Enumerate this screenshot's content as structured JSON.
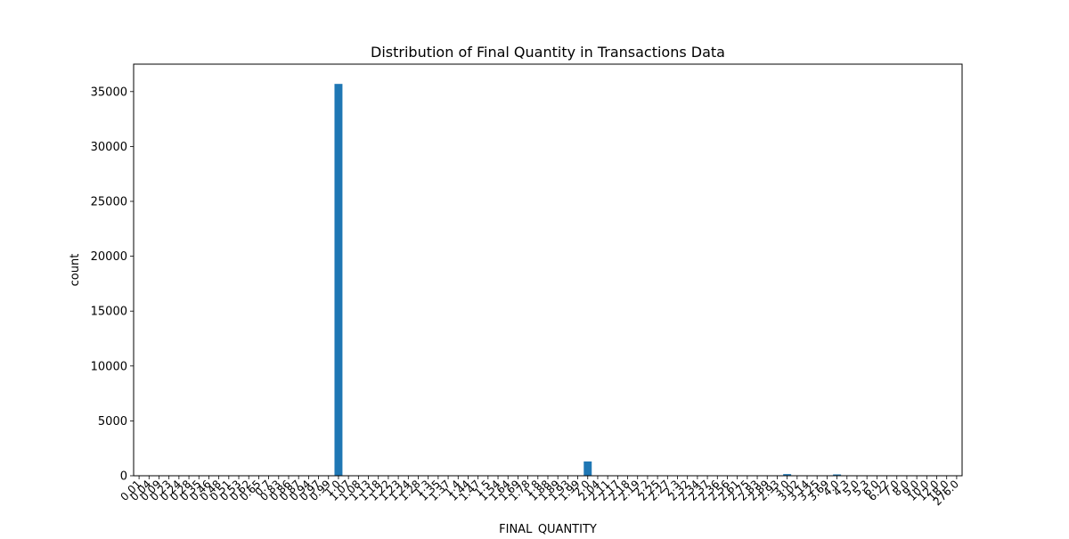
{
  "chart_data": {
    "type": "bar",
    "title": "Distribution of Final Quantity in Transactions Data",
    "xlabel": "FINAL_QUANTITY",
    "ylabel": "count",
    "ylim": [
      0,
      37500
    ],
    "yticks": [
      0,
      5000,
      10000,
      15000,
      20000,
      25000,
      30000,
      35000
    ],
    "categories": [
      "0.01",
      "0.04",
      "0.09",
      "0.23",
      "0.24",
      "0.28",
      "0.35",
      "0.46",
      "0.48",
      "0.51",
      "0.53",
      "0.62",
      "0.65",
      "0.7",
      "0.83",
      "0.86",
      "0.87",
      "0.94",
      "0.97",
      "0.99",
      "1.0",
      "1.07",
      "1.08",
      "1.13",
      "1.18",
      "1.22",
      "1.23",
      "1.24",
      "1.28",
      "1.3",
      "1.35",
      "1.37",
      "1.4",
      "1.44",
      "1.47",
      "1.5",
      "1.54",
      "1.64",
      "1.69",
      "1.78",
      "1.8",
      "1.88",
      "1.89",
      "1.93",
      "1.99",
      "2.0",
      "2.04",
      "2.11",
      "2.17",
      "2.18",
      "2.19",
      "2.2",
      "2.25",
      "2.27",
      "2.3",
      "2.32",
      "2.34",
      "2.37",
      "2.36",
      "2.56",
      "2.61",
      "2.75",
      "2.83",
      "2.89",
      "2.93",
      "3.0",
      "3.02",
      "3.14",
      "3.25",
      "3.69",
      "4.0",
      "4.3",
      "5.0",
      "5.3",
      "6.0",
      "6.22",
      "7.0",
      "8.0",
      "9.0",
      "10.0",
      "12.0",
      "18.0",
      "276.0"
    ],
    "values": [
      5,
      5,
      5,
      5,
      5,
      5,
      5,
      5,
      5,
      5,
      5,
      5,
      5,
      5,
      5,
      5,
      5,
      5,
      5,
      5,
      35700,
      5,
      5,
      5,
      5,
      5,
      5,
      5,
      5,
      5,
      5,
      5,
      5,
      5,
      5,
      5,
      5,
      5,
      5,
      5,
      5,
      5,
      5,
      5,
      5,
      1300,
      5,
      5,
      5,
      5,
      5,
      5,
      5,
      5,
      5,
      5,
      5,
      5,
      5,
      5,
      5,
      5,
      5,
      5,
      5,
      150,
      5,
      5,
      5,
      5,
      120,
      5,
      5,
      5,
      5,
      5,
      5,
      5,
      5,
      5,
      5,
      5,
      5
    ],
    "bar_color": "#1f77b4",
    "grid": false,
    "legend": "none"
  }
}
